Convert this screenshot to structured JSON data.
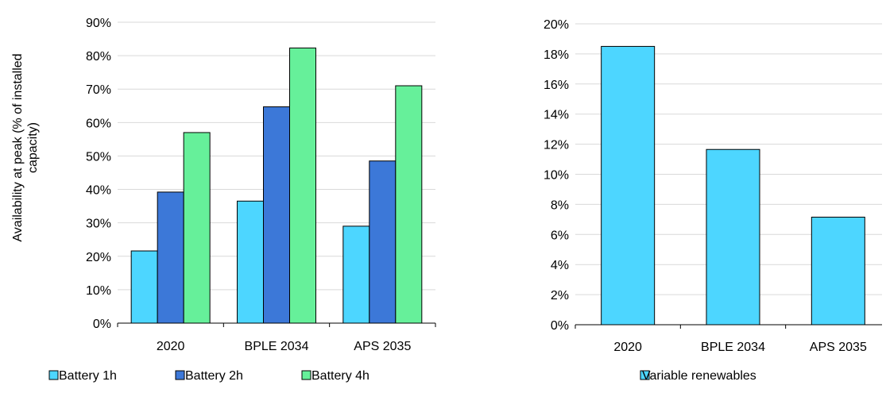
{
  "chart_data": [
    {
      "type": "bar",
      "categories": [
        "2020",
        "BPLE 2034",
        "APS 2035"
      ],
      "series": [
        {
          "name": "Battery 1h",
          "values": [
            0.216,
            0.365,
            0.29
          ],
          "color": "#4DD6FF"
        },
        {
          "name": "Battery 2h",
          "values": [
            0.392,
            0.647,
            0.485
          ],
          "color": "#3C78D8"
        },
        {
          "name": "Battery 4h",
          "values": [
            0.57,
            0.823,
            0.71
          ],
          "color": "#66F09A"
        }
      ],
      "ylabel": "Availability at peak (% of installed capacity)",
      "ylim": [
        0,
        0.9
      ],
      "yticks": [
        0,
        0.1,
        0.2,
        0.3,
        0.4,
        0.5,
        0.6,
        0.7,
        0.8,
        0.9
      ],
      "y_format": "percent",
      "grid": true,
      "legend_position": "bottom"
    },
    {
      "type": "bar",
      "categories": [
        "2020",
        "BPLE 2034",
        "APS 2035"
      ],
      "series": [
        {
          "name": "Variable renewables",
          "values": [
            0.185,
            0.1165,
            0.0715
          ],
          "color": "#4DD6FF"
        }
      ],
      "ylabel": "",
      "ylim": [
        0,
        0.2
      ],
      "yticks": [
        0,
        0.02,
        0.04,
        0.06,
        0.08,
        0.1,
        0.12,
        0.14,
        0.16,
        0.18,
        0.2
      ],
      "y_format": "percent",
      "grid": true,
      "legend_position": "bottom"
    }
  ]
}
